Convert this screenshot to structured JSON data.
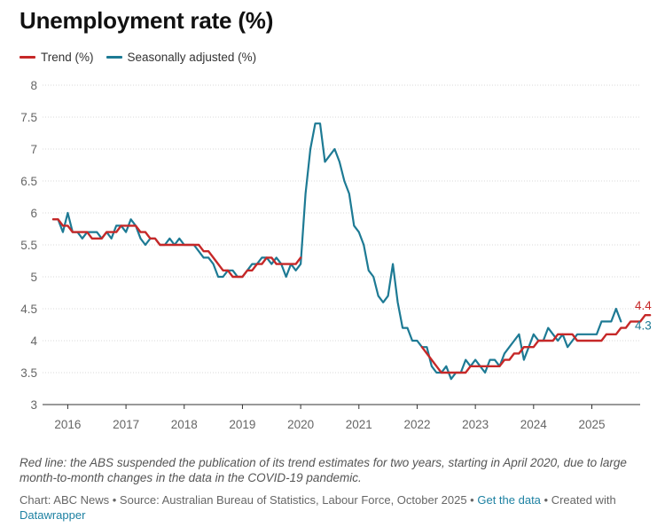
{
  "title": "Unemployment rate (%)",
  "legend": [
    {
      "label": "Trend (%)",
      "color": "#c62828"
    },
    {
      "label": "Seasonally adjusted (%)",
      "color": "#1d7a94"
    }
  ],
  "note": "Red line: the ABS suspended the publication of its trend estimates for two years, starting in April 2020, due to large month-to-month changes in the data in the COVID-19 pandemic.",
  "footer": {
    "prefix": "Chart: ABC News • Source: Australian Bureau of Statistics, Labour Force, October 2025 • ",
    "get_data": "Get the data",
    "middle": " • Created with ",
    "tool": "Datawrapper"
  },
  "chart_data": {
    "type": "line",
    "title": "Unemployment rate (%)",
    "xlabel": "",
    "ylabel": "",
    "ylim": [
      3,
      8
    ],
    "yticks": [
      3,
      3.5,
      4,
      4.5,
      5,
      5.5,
      6,
      6.5,
      7,
      7.5,
      8
    ],
    "ytick_labels": [
      "3",
      "3.5",
      "4",
      "4.5",
      "5",
      "5.5",
      "6",
      "6.5",
      "7",
      "7.5",
      "8"
    ],
    "xlim": [
      2015.75,
      2025.83
    ],
    "xticks": [
      2016,
      2017,
      2018,
      2019,
      2020,
      2021,
      2022,
      2023,
      2024,
      2025
    ],
    "xtick_labels": [
      "2016",
      "2017",
      "2018",
      "2019",
      "2020",
      "2021",
      "2022",
      "2023",
      "2024",
      "2025"
    ],
    "grid": true,
    "end_labels": {
      "trend": "4.4",
      "sa": "4.3"
    },
    "series": [
      {
        "name": "Seasonally adjusted (%)",
        "color": "#1d7a94",
        "start": 2015.75,
        "step": 0.0833333,
        "values": [
          5.9,
          5.9,
          5.7,
          6.0,
          5.7,
          5.7,
          5.6,
          5.7,
          5.7,
          5.7,
          5.6,
          5.7,
          5.6,
          5.8,
          5.8,
          5.7,
          5.9,
          5.8,
          5.6,
          5.5,
          5.6,
          5.6,
          5.5,
          5.5,
          5.6,
          5.5,
          5.6,
          5.5,
          5.5,
          5.5,
          5.4,
          5.3,
          5.3,
          5.2,
          5.0,
          5.0,
          5.1,
          5.1,
          5.0,
          5.0,
          5.1,
          5.2,
          5.2,
          5.3,
          5.3,
          5.2,
          5.3,
          5.2,
          5.0,
          5.2,
          5.1,
          5.2,
          6.3,
          7.0,
          7.4,
          7.4,
          6.8,
          6.9,
          7.0,
          6.8,
          6.5,
          6.3,
          5.8,
          5.7,
          5.5,
          5.1,
          5.0,
          4.7,
          4.6,
          4.7,
          5.2,
          4.6,
          4.2,
          4.2,
          4.0,
          4.0,
          3.9,
          3.9,
          3.6,
          3.5,
          3.5,
          3.6,
          3.4,
          3.5,
          3.5,
          3.7,
          3.6,
          3.7,
          3.6,
          3.5,
          3.7,
          3.7,
          3.6,
          3.8,
          3.9,
          4.0,
          4.1,
          3.7,
          3.9,
          4.1,
          4.0,
          4.0,
          4.2,
          4.1,
          4.0,
          4.1,
          3.9,
          4.0,
          4.1,
          4.1,
          4.1,
          4.1,
          4.1,
          4.3,
          4.3,
          4.3,
          4.5,
          4.3
        ]
      },
      {
        "name": "Trend (%)",
        "color": "#c62828",
        "segments": [
          {
            "start": 2015.75,
            "step": 0.0833333,
            "values": [
              5.9,
              5.9,
              5.8,
              5.8,
              5.7,
              5.7,
              5.7,
              5.7,
              5.6,
              5.6,
              5.6,
              5.7,
              5.7,
              5.7,
              5.8,
              5.8,
              5.8,
              5.8,
              5.7,
              5.7,
              5.6,
              5.6,
              5.5,
              5.5,
              5.5,
              5.5,
              5.5,
              5.5,
              5.5,
              5.5,
              5.5,
              5.4,
              5.4,
              5.3,
              5.2,
              5.1,
              5.1,
              5.0,
              5.0,
              5.0,
              5.1,
              5.1,
              5.2,
              5.2,
              5.3,
              5.3,
              5.2,
              5.2,
              5.2,
              5.2,
              5.2,
              5.3
            ]
          },
          {
            "start": 2022.083,
            "step": 0.0833333,
            "values": [
              3.9,
              3.8,
              3.7,
              3.6,
              3.5,
              3.5,
              3.5,
              3.5,
              3.5,
              3.5,
              3.6,
              3.6,
              3.6,
              3.6,
              3.6,
              3.6,
              3.6,
              3.7,
              3.7,
              3.8,
              3.8,
              3.9,
              3.9,
              3.9,
              4.0,
              4.0,
              4.0,
              4.0,
              4.1,
              4.1,
              4.1,
              4.1,
              4.0,
              4.0,
              4.0,
              4.0,
              4.0,
              4.0,
              4.1,
              4.1,
              4.1,
              4.2,
              4.2,
              4.3,
              4.3,
              4.3,
              4.4,
              4.4
            ]
          }
        ]
      }
    ]
  }
}
